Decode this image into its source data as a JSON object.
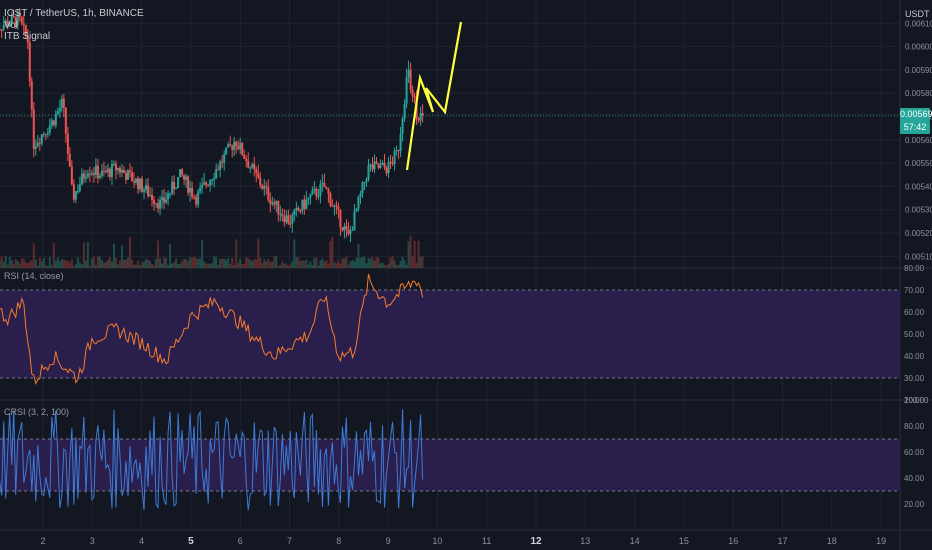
{
  "header": {
    "symbol_line": "IOST / TetherUS, 1h, BINANCE",
    "vol_label": "Vol",
    "indicator_label": "ITB Signal",
    "currency": "USDT"
  },
  "price_badge": {
    "value": "0.005690",
    "countdown": "57:42",
    "color": "#26a69a"
  },
  "colors": {
    "background": "#131722",
    "up": "#26a69a",
    "down": "#ef5350",
    "volume_up": "#1f4d48",
    "volume_down": "#5c2b2e",
    "rsi_line": "#f57c2b",
    "crsi_line": "#3d7bd6",
    "band_fill": "#2a1e4d",
    "drawing": "#ffff3b"
  },
  "chart_data": [
    {
      "type": "candlestick",
      "pane": "price",
      "ylim": [
        0.00505,
        0.0062
      ],
      "y_ticks": [
        "0.006100",
        "0.006000",
        "0.005900",
        "0.005800",
        "0.005700",
        "0.005600",
        "0.005500",
        "0.005400",
        "0.005300",
        "0.005200",
        "0.005100"
      ],
      "x_ticks": [
        "2",
        "3",
        "4",
        "5",
        "6",
        "7",
        "8",
        "9",
        "10",
        "11",
        "12",
        "13",
        "14",
        "15",
        "16",
        "17",
        "18",
        "19"
      ],
      "x_ticks_bold": [
        "5",
        "12"
      ],
      "close_path": [
        [
          1,
          0.00608
        ],
        [
          1.5,
          0.00612
        ],
        [
          1.7,
          0.00602
        ],
        [
          1.8,
          0.00558
        ],
        [
          2.2,
          0.00568
        ],
        [
          2.4,
          0.00576
        ],
        [
          2.6,
          0.00535
        ],
        [
          2.9,
          0.00548
        ],
        [
          3.2,
          0.00545
        ],
        [
          3.5,
          0.00548
        ],
        [
          3.9,
          0.00542
        ],
        [
          4.4,
          0.00532
        ],
        [
          4.8,
          0.00545
        ],
        [
          5.1,
          0.00535
        ],
        [
          5.6,
          0.0055
        ],
        [
          5.9,
          0.0056
        ],
        [
          6.3,
          0.00545
        ],
        [
          6.7,
          0.00532
        ],
        [
          7.0,
          0.00525
        ],
        [
          7.4,
          0.00535
        ],
        [
          7.7,
          0.0054
        ],
        [
          8.2,
          0.00518
        ],
        [
          8.6,
          0.00548
        ],
        [
          9.0,
          0.00548
        ],
        [
          9.2,
          0.00555
        ],
        [
          9.4,
          0.0059
        ],
        [
          9.6,
          0.0057
        ]
      ],
      "volume_relative": "small bars, spike near day 9.6"
    },
    {
      "type": "line",
      "pane": "RSI",
      "name": "RSI (14, close)",
      "ylim": [
        20,
        80
      ],
      "y_ticks": [
        "80.00",
        "70.00",
        "60.00",
        "50.00",
        "40.00",
        "30.00",
        "20.00"
      ],
      "bands": [
        30,
        70
      ],
      "path": [
        [
          1,
          62
        ],
        [
          1.3,
          57
        ],
        [
          1.6,
          65
        ],
        [
          1.8,
          28
        ],
        [
          2.2,
          40
        ],
        [
          2.5,
          34
        ],
        [
          2.7,
          30
        ],
        [
          3.0,
          48
        ],
        [
          3.5,
          52
        ],
        [
          4.0,
          46
        ],
        [
          4.5,
          38
        ],
        [
          5.0,
          58
        ],
        [
          5.5,
          65
        ],
        [
          6.0,
          55
        ],
        [
          6.3,
          48
        ],
        [
          6.7,
          40
        ],
        [
          7.0,
          45
        ],
        [
          7.4,
          50
        ],
        [
          7.7,
          68
        ],
        [
          8.0,
          40
        ],
        [
          8.3,
          42
        ],
        [
          8.6,
          74
        ],
        [
          9.0,
          64
        ],
        [
          9.3,
          70
        ],
        [
          9.6,
          75
        ],
        [
          9.8,
          60
        ]
      ]
    },
    {
      "type": "line",
      "pane": "CRSI",
      "name": "CRSI (3, 2, 100)",
      "ylim": [
        0,
        100
      ],
      "y_ticks": [
        "100.00",
        "80.00",
        "60.00",
        "40.00",
        "20.00"
      ],
      "bands": [
        30,
        70
      ],
      "oscillation": "high-frequency between ~15 and ~90"
    }
  ]
}
